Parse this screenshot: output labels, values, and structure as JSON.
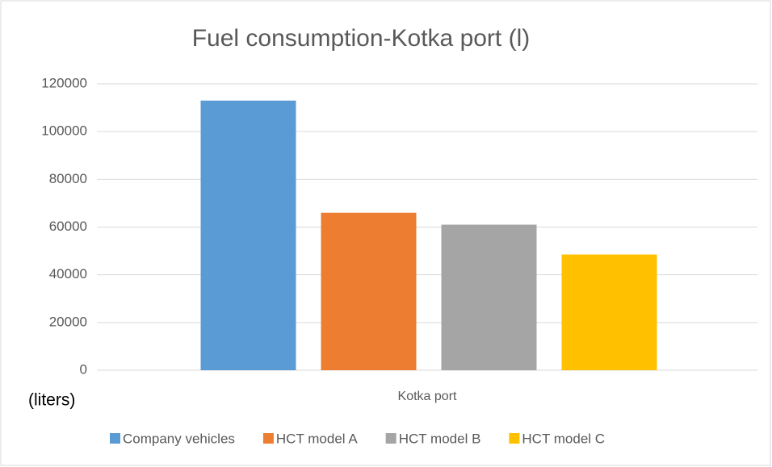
{
  "chart_data": {
    "type": "bar",
    "title": "Fuel consumption-Kotka port (l)",
    "y_label": "(liters)",
    "categories": [
      "Kotka port"
    ],
    "series": [
      {
        "name": "Company vehicles",
        "color": "#5b9bd5",
        "values": [
          113000
        ]
      },
      {
        "name": "HCT model A",
        "color": "#ed7d31",
        "values": [
          66000
        ]
      },
      {
        "name": "HCT model B",
        "color": "#a5a5a5",
        "values": [
          61000
        ]
      },
      {
        "name": "HCT model C",
        "color": "#ffc000",
        "values": [
          48500
        ]
      }
    ],
    "ylim": [
      0,
      120000
    ],
    "yticks": [
      0,
      20000,
      40000,
      60000,
      80000,
      100000,
      120000
    ],
    "grid": true,
    "legend": "bottom"
  }
}
